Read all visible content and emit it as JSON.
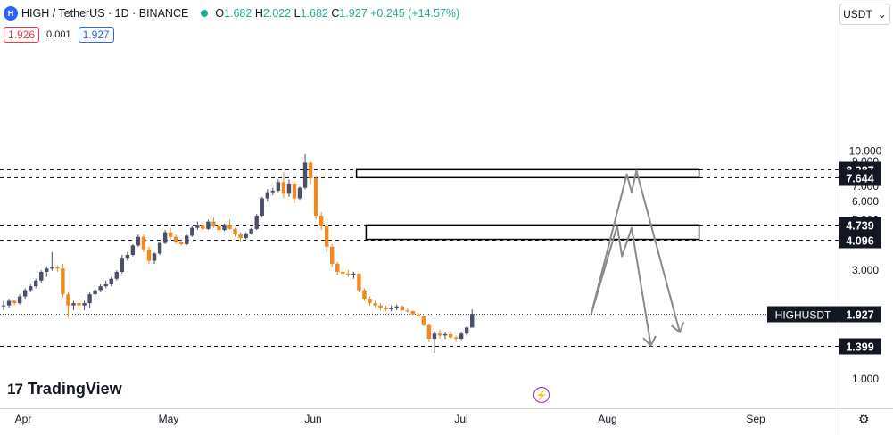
{
  "header": {
    "logo_text": "H",
    "symbol": "HIGH / TetherUS · 1D · BINANCE",
    "ohlc_prefix_o": "O",
    "open": "1.682",
    "ohlc_prefix_h": "H",
    "high": "2.022",
    "ohlc_prefix_l": "L",
    "low": "1.682",
    "ohlc_prefix_c": "C",
    "close": "1.927",
    "change": "+0.245 (+14.57%)"
  },
  "quote": {
    "bid": "1.926",
    "spread": "0.001",
    "ask": "1.927"
  },
  "currency_selector": {
    "label": "USDT",
    "chevron_icon": "chevron-down-icon"
  },
  "branding": {
    "logo_mark": "17",
    "name": "TradingView"
  },
  "icons": {
    "settings": "gear-icon",
    "flash": "lightning-icon"
  },
  "colors": {
    "up": "#4a5068",
    "down": "#f0891f",
    "arrow": "#8a8a8a",
    "label_bg": "#131722"
  },
  "chart_data": {
    "type": "candlestick",
    "symbol": "HIGH / TetherUS",
    "interval": "1D",
    "exchange": "BINANCE",
    "x_labels": [
      "Apr",
      "May",
      "Jun",
      "Jul",
      "Aug",
      "Sep"
    ],
    "y_ticks": [
      "1.000",
      "3.000",
      "4.000",
      "5.000",
      "6.000",
      "7.000",
      "8.000",
      "9.000",
      "10.000"
    ],
    "y_scale": "log",
    "price_lines": [
      {
        "label": "8.287",
        "value": 8.287
      },
      {
        "label": "7.644",
        "value": 7.644
      },
      {
        "label": "4.739",
        "value": 4.739
      },
      {
        "label": "4.096",
        "value": 4.096
      },
      {
        "label": "1.399",
        "value": 1.399
      }
    ],
    "last_price": {
      "symbol": "HIGHUSDT",
      "label": "1.927",
      "value": 1.927
    },
    "zones": [
      {
        "top": 8.287,
        "bottom": 7.644,
        "start": "Jun 10",
        "end": "Aug 20"
      },
      {
        "top": 4.739,
        "bottom": 4.096,
        "start": "Jun 12",
        "end": "Aug 20"
      }
    ],
    "projected_paths": [
      {
        "points": [
          [
            "Jul 28",
            1.93
          ],
          [
            "Aug 3",
            4.7
          ],
          [
            "Aug 4",
            3.45
          ],
          [
            "Aug 6",
            4.6
          ],
          [
            "Aug 10",
            1.4
          ]
        ]
      },
      {
        "points": [
          [
            "Jul 28",
            1.93
          ],
          [
            "Aug 5",
            7.9
          ],
          [
            "Aug 6",
            6.6
          ],
          [
            "Aug 7",
            8.2
          ],
          [
            "Aug 16",
            1.6
          ]
        ]
      }
    ],
    "candles": [
      [
        2.08,
        2.2,
        2.0,
        2.1
      ],
      [
        2.1,
        2.25,
        2.05,
        2.2
      ],
      [
        2.2,
        2.22,
        2.1,
        2.15
      ],
      [
        2.15,
        2.35,
        2.12,
        2.3
      ],
      [
        2.3,
        2.5,
        2.25,
        2.45
      ],
      [
        2.45,
        2.6,
        2.4,
        2.55
      ],
      [
        2.55,
        2.75,
        2.5,
        2.7
      ],
      [
        2.7,
        3.0,
        2.65,
        2.95
      ],
      [
        2.95,
        3.1,
        2.8,
        3.05
      ],
      [
        3.05,
        3.6,
        2.98,
        3.1
      ],
      [
        3.1,
        3.15,
        2.95,
        3.05
      ],
      [
        3.05,
        3.2,
        2.3,
        2.35
      ],
      [
        2.35,
        2.4,
        1.85,
        2.1
      ],
      [
        2.1,
        2.2,
        2.0,
        2.15
      ],
      [
        2.15,
        2.25,
        2.05,
        2.1
      ],
      [
        2.1,
        2.2,
        2.0,
        2.15
      ],
      [
        2.15,
        2.4,
        2.05,
        2.35
      ],
      [
        2.35,
        2.5,
        2.3,
        2.45
      ],
      [
        2.45,
        2.6,
        2.4,
        2.55
      ],
      [
        2.55,
        2.7,
        2.5,
        2.6
      ],
      [
        2.6,
        2.8,
        2.55,
        2.75
      ],
      [
        2.75,
        3.0,
        2.7,
        2.95
      ],
      [
        2.95,
        3.5,
        2.9,
        3.4
      ],
      [
        3.4,
        3.6,
        3.3,
        3.5
      ],
      [
        3.5,
        3.9,
        3.45,
        3.85
      ],
      [
        3.85,
        4.3,
        3.8,
        4.2
      ],
      [
        4.2,
        4.3,
        3.6,
        3.7
      ],
      [
        3.7,
        3.8,
        3.2,
        3.3
      ],
      [
        3.3,
        3.6,
        3.2,
        3.55
      ],
      [
        3.55,
        4.0,
        3.5,
        3.95
      ],
      [
        3.95,
        4.5,
        3.9,
        4.4
      ],
      [
        4.4,
        4.6,
        4.1,
        4.2
      ],
      [
        4.2,
        4.3,
        3.9,
        4.0
      ],
      [
        4.0,
        4.1,
        3.85,
        3.9
      ],
      [
        3.9,
        4.3,
        3.85,
        4.25
      ],
      [
        4.25,
        4.7,
        4.2,
        4.6
      ],
      [
        4.6,
        4.9,
        4.5,
        4.75
      ],
      [
        4.75,
        4.85,
        4.5,
        4.55
      ],
      [
        4.55,
        5.0,
        4.5,
        4.9
      ],
      [
        4.9,
        5.1,
        4.6,
        4.7
      ],
      [
        4.7,
        4.8,
        4.4,
        4.5
      ],
      [
        4.5,
        4.8,
        4.45,
        4.75
      ],
      [
        4.75,
        5.0,
        4.5,
        4.55
      ],
      [
        4.55,
        4.6,
        4.2,
        4.3
      ],
      [
        4.3,
        4.4,
        4.0,
        4.15
      ],
      [
        4.15,
        4.4,
        4.1,
        4.35
      ],
      [
        4.35,
        4.6,
        4.3,
        4.55
      ],
      [
        4.55,
        5.3,
        4.5,
        5.2
      ],
      [
        5.2,
        6.3,
        5.1,
        6.2
      ],
      [
        6.2,
        6.8,
        6.0,
        6.6
      ],
      [
        6.6,
        6.9,
        6.4,
        6.7
      ],
      [
        6.7,
        7.5,
        6.6,
        7.3
      ],
      [
        7.3,
        8.1,
        6.2,
        6.5
      ],
      [
        6.5,
        7.5,
        6.3,
        7.2
      ],
      [
        7.2,
        7.3,
        5.9,
        6.2
      ],
      [
        6.2,
        7.0,
        6.1,
        6.9
      ],
      [
        6.9,
        9.7,
        6.8,
        8.9
      ],
      [
        8.9,
        9.0,
        7.2,
        7.6
      ],
      [
        7.6,
        7.8,
        5.0,
        5.2
      ],
      [
        5.2,
        5.4,
        4.5,
        4.7
      ],
      [
        4.7,
        4.8,
        3.6,
        3.8
      ],
      [
        3.8,
        3.9,
        3.1,
        3.2
      ],
      [
        3.2,
        3.25,
        2.85,
        2.95
      ],
      [
        2.95,
        3.05,
        2.8,
        2.9
      ],
      [
        2.9,
        3.0,
        2.8,
        2.85
      ],
      [
        2.85,
        2.95,
        2.75,
        2.9
      ],
      [
        2.9,
        2.9,
        2.4,
        2.45
      ],
      [
        2.45,
        2.5,
        2.2,
        2.25
      ],
      [
        2.25,
        2.3,
        2.1,
        2.15
      ],
      [
        2.15,
        2.2,
        2.05,
        2.1
      ],
      [
        2.1,
        2.15,
        2.0,
        2.05
      ],
      [
        2.05,
        2.1,
        1.98,
        2.02
      ],
      [
        2.02,
        2.1,
        1.98,
        2.05
      ],
      [
        2.05,
        2.12,
        2.0,
        2.08
      ],
      [
        2.08,
        2.1,
        1.98,
        2.0
      ],
      [
        2.0,
        2.05,
        1.95,
        1.98
      ],
      [
        1.98,
        2.0,
        1.9,
        1.92
      ],
      [
        1.92,
        1.95,
        1.85,
        1.88
      ],
      [
        1.88,
        1.9,
        1.7,
        1.72
      ],
      [
        1.72,
        1.75,
        1.45,
        1.5
      ],
      [
        1.5,
        1.62,
        1.3,
        1.58
      ],
      [
        1.58,
        1.65,
        1.5,
        1.55
      ],
      [
        1.55,
        1.6,
        1.5,
        1.57
      ],
      [
        1.57,
        1.62,
        1.5,
        1.52
      ],
      [
        1.52,
        1.55,
        1.45,
        1.5
      ],
      [
        1.5,
        1.6,
        1.48,
        1.58
      ],
      [
        1.58,
        1.7,
        1.55,
        1.68
      ],
      [
        1.68,
        2.02,
        1.68,
        1.927
      ]
    ]
  }
}
